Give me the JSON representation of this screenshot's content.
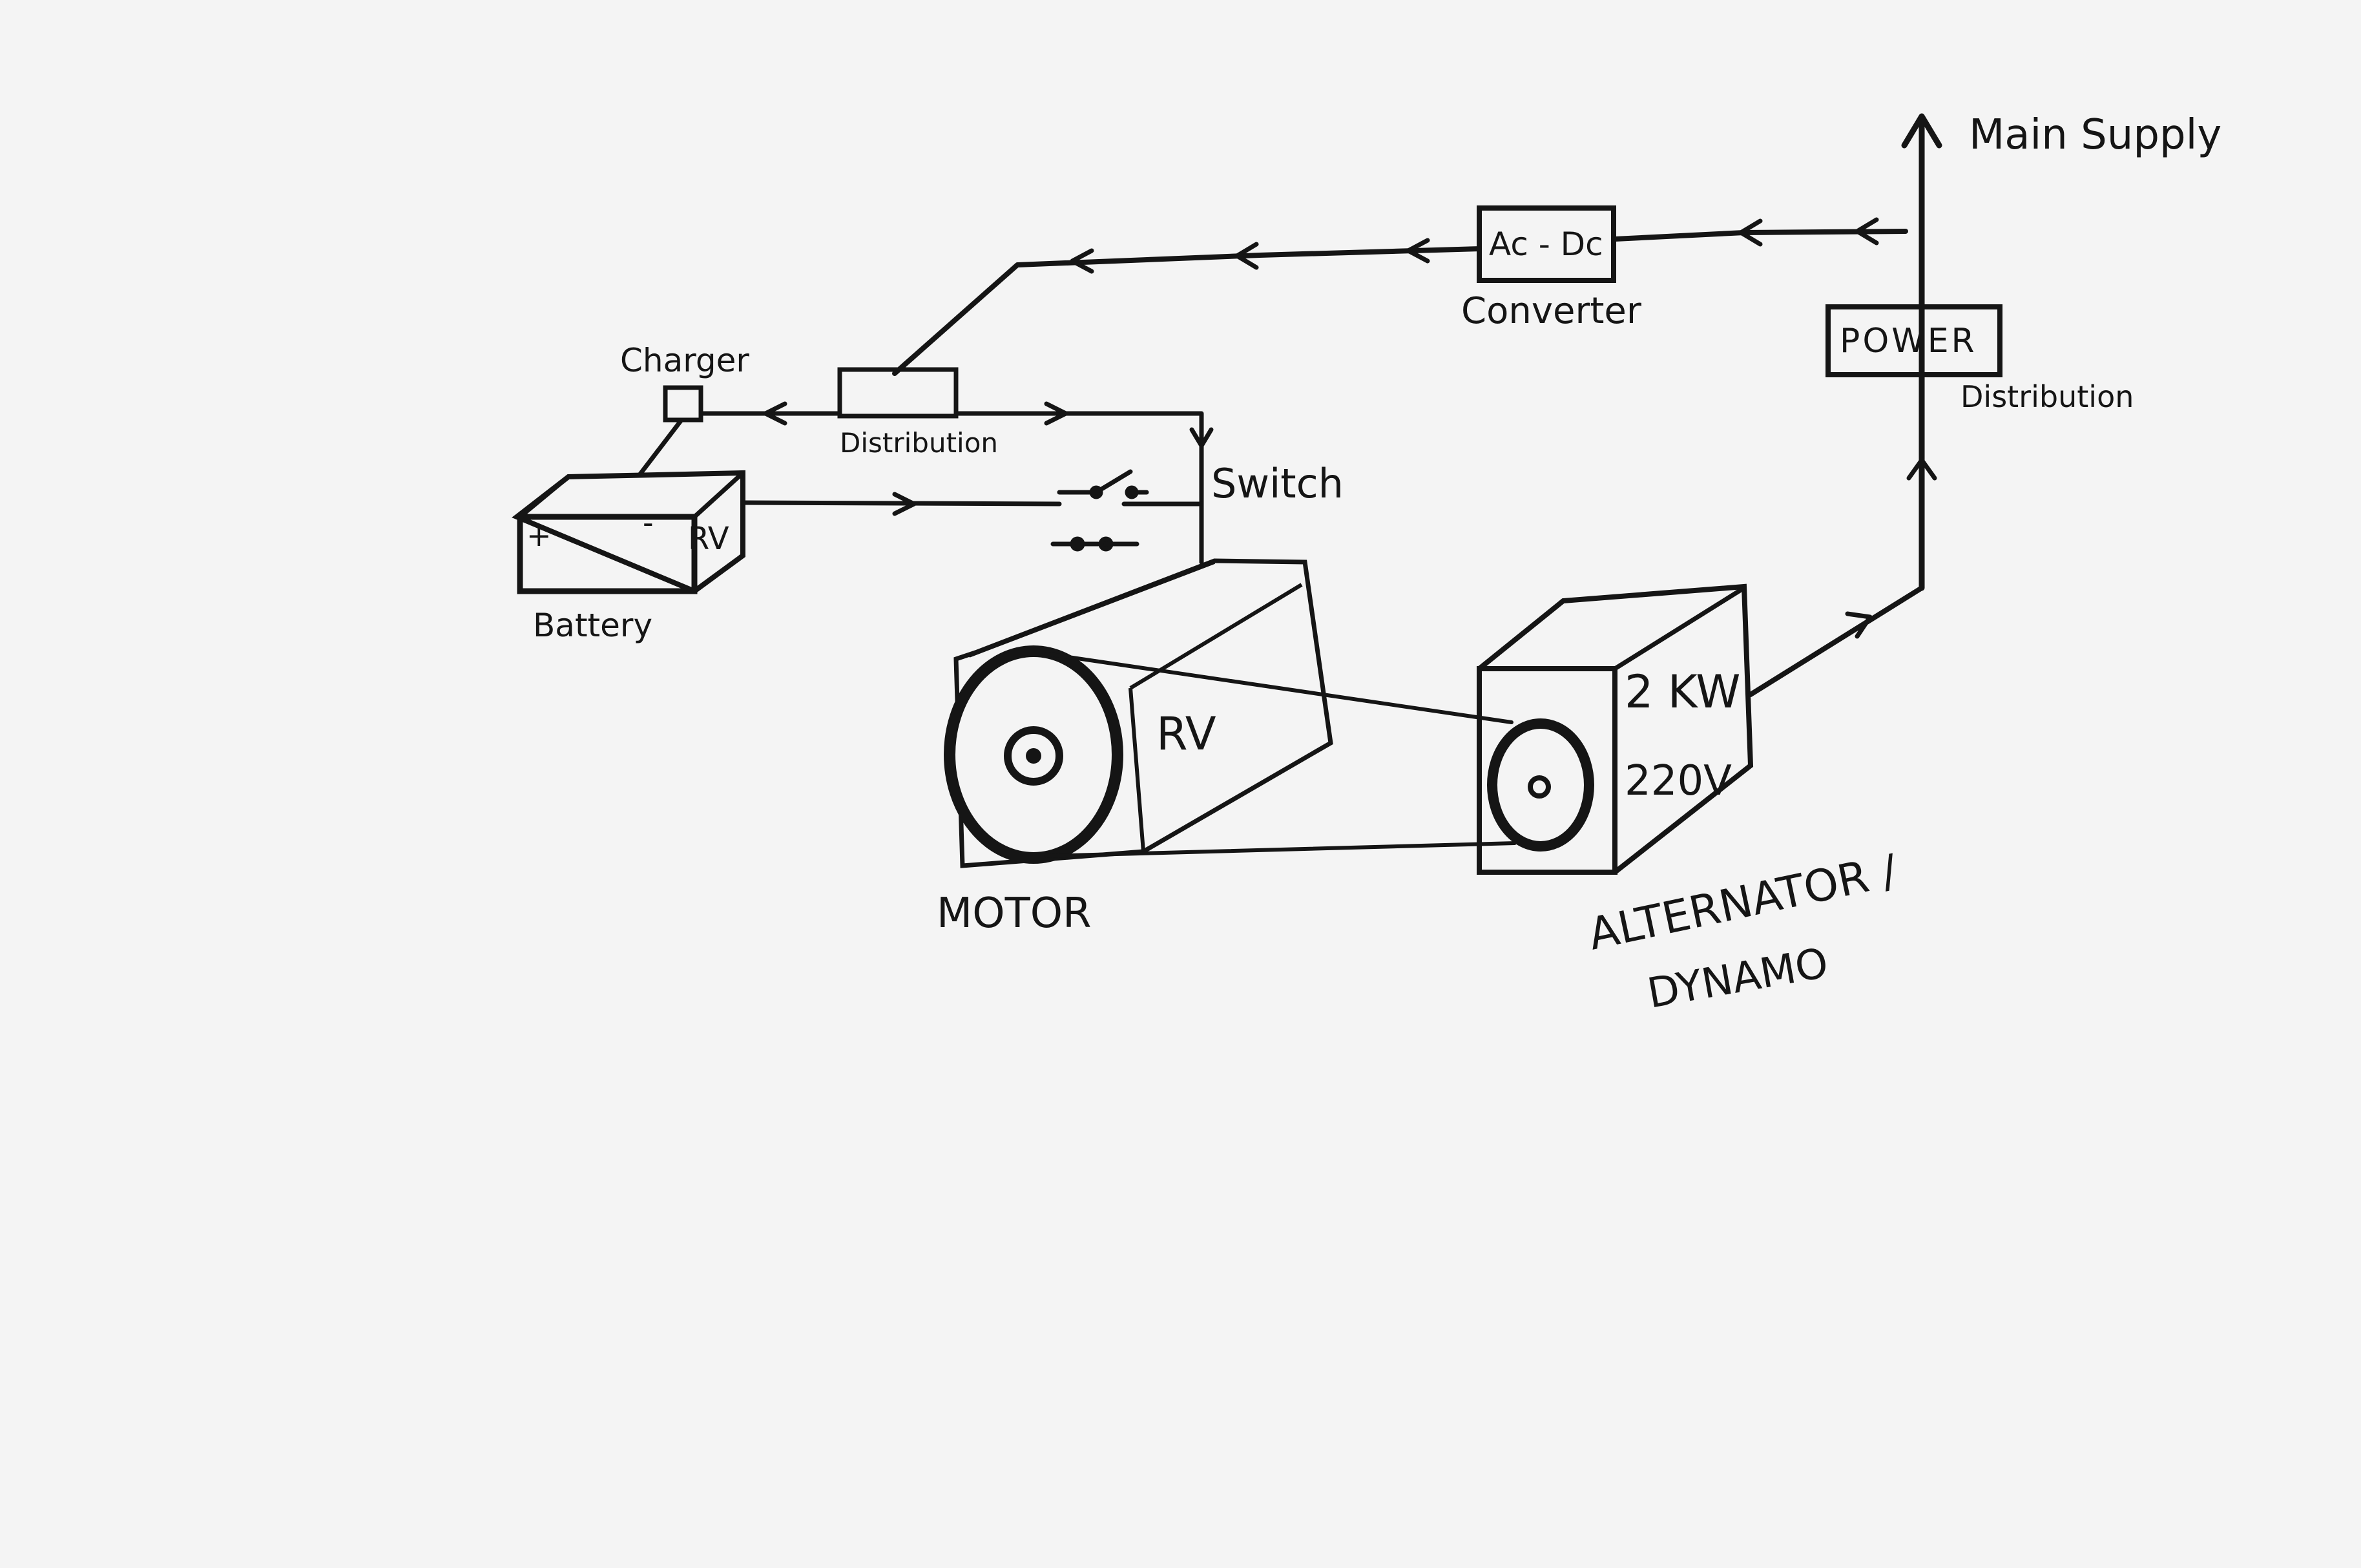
{
  "labels": {
    "main_supply": "Main Supply",
    "ac_dc": "Ac - Dc",
    "converter": "Converter",
    "power": "POWER",
    "distribution_right": "Distribution",
    "charger": "Charger",
    "distribution_left": "Distribution",
    "switch": "Switch",
    "battery": "Battery",
    "battery_rv": "RV",
    "battery_plus": "+",
    "battery_minus": "-",
    "motor_rv": "RV",
    "motor": "MOTOR",
    "alt_power": "2 KW",
    "alt_voltage": "220V",
    "alternator_line1": "ALTERNATOR /",
    "alternator_line2": "DYNAMO"
  },
  "colors": {
    "paper": "#f4f4f4",
    "ink": "#151515"
  },
  "icons": {
    "switch_open": "open-switch-icon",
    "switch_closed": "closed-switch-icon",
    "arrow": "flow-arrow-icon",
    "main_supply_arrow": "up-arrow-icon"
  }
}
